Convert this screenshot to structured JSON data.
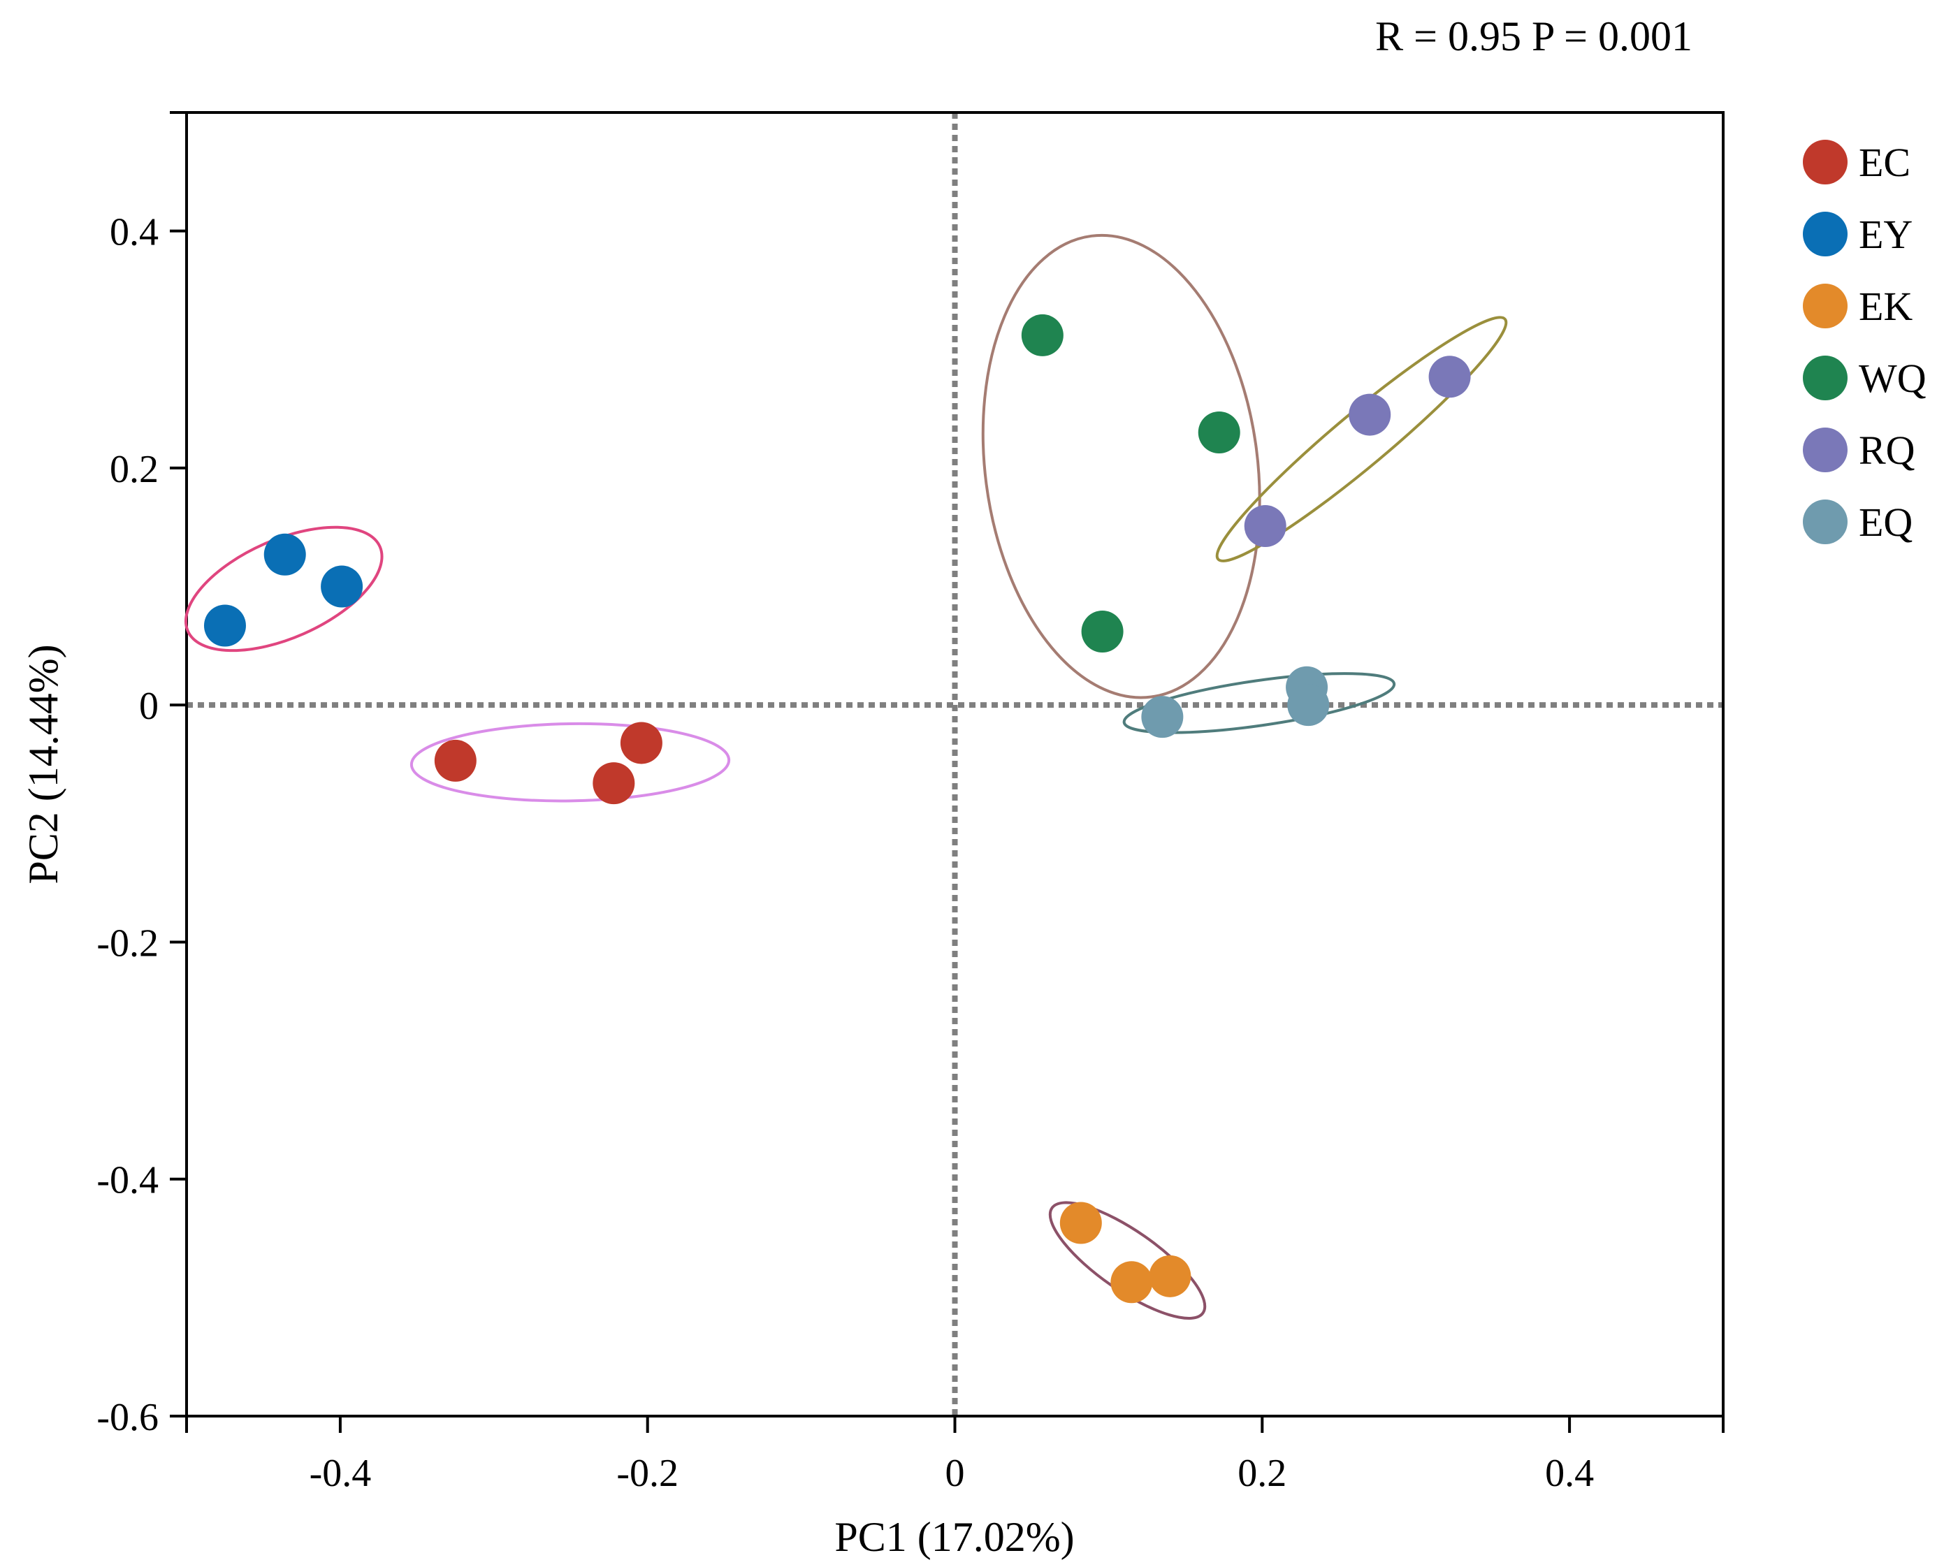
{
  "chart_data": {
    "type": "scatter",
    "annotation": "R = 0.95 P = 0.001",
    "xlabel": "PC1 (17.02%)",
    "ylabel": "PC2 (14.44%)",
    "xlim": [
      -0.5,
      0.5
    ],
    "ylim": [
      -0.6,
      0.5
    ],
    "x_ticks": [
      -0.4,
      -0.2,
      0,
      0.2,
      0.4
    ],
    "x_tick_labels": [
      "-0.4",
      "-0.2",
      "0",
      "0.2",
      "0.4"
    ],
    "y_ticks": [
      -0.6,
      -0.4,
      -0.2,
      0,
      0.2,
      0.4
    ],
    "y_tick_labels": [
      "-0.6",
      "-0.4",
      "-0.2",
      "0",
      "0.2",
      "0.4"
    ],
    "reference_lines": {
      "x": 0,
      "y": 0,
      "style": "dotted",
      "color": "#7f7f7f"
    },
    "legend_position": "right",
    "series": [
      {
        "name": "EC",
        "color": "#c0392b",
        "ellipse_color": "#d98ce8",
        "points": [
          [
            -0.325,
            -0.047
          ],
          [
            -0.222,
            -0.066
          ],
          [
            -0.204,
            -0.032
          ]
        ]
      },
      {
        "name": "EY",
        "color": "#0a6fb5",
        "ellipse_color": "#e0457f",
        "points": [
          [
            -0.475,
            0.067
          ],
          [
            -0.436,
            0.127
          ],
          [
            -0.399,
            0.1
          ]
        ]
      },
      {
        "name": "EK",
        "color": "#e38a2a",
        "ellipse_color": "#8c5168",
        "points": [
          [
            0.082,
            -0.437
          ],
          [
            0.115,
            -0.487
          ],
          [
            0.14,
            -0.482
          ]
        ]
      },
      {
        "name": "WQ",
        "color": "#1f8450",
        "ellipse_color": "#a57c72",
        "points": [
          [
            0.057,
            0.312
          ],
          [
            0.172,
            0.23
          ],
          [
            0.096,
            0.062
          ]
        ]
      },
      {
        "name": "RQ",
        "color": "#7a78b8",
        "ellipse_color": "#9a8f3c",
        "points": [
          [
            0.202,
            0.151
          ],
          [
            0.27,
            0.245
          ],
          [
            0.322,
            0.277
          ]
        ]
      },
      {
        "name": "EQ",
        "color": "#6f9bae",
        "ellipse_color": "#4f7c7c",
        "points": [
          [
            0.135,
            -0.01
          ],
          [
            0.229,
            0.015
          ],
          [
            0.23,
            0.0
          ]
        ]
      }
    ]
  }
}
